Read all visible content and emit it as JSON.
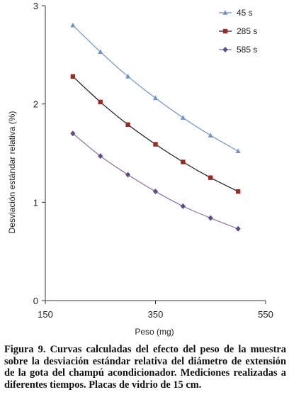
{
  "caption": "Figura 9. Curvas calculadas del efecto del peso de la muestra sobre la desviación estándar relativa del diámetro de extensión de la gota del champú acondicionador. Mediciones realizadas a diferentes tiempos. Placas de vidrio de 15 cm.",
  "chart_data": {
    "type": "line",
    "title": "",
    "xlabel": "Peso (mg)",
    "ylabel": "Desviación estándar relativa (%)",
    "xlim": [
      150,
      550
    ],
    "ylim": [
      0,
      3
    ],
    "xticks": [
      "150",
      "350",
      "550"
    ],
    "yticks": [
      "0",
      "1",
      "2",
      "3"
    ],
    "grid": false,
    "legend_position": "top-right",
    "x": [
      200,
      250,
      300,
      350,
      400,
      450,
      500
    ],
    "series": [
      {
        "name": "45 s",
        "color": "#6e93c8",
        "marker": "triangle",
        "values": [
          2.8,
          2.53,
          2.28,
          2.06,
          1.86,
          1.68,
          1.52
        ]
      },
      {
        "name": "285 s",
        "color": "#1a1a1a",
        "marker_color": "#9b2a23",
        "marker": "square",
        "values": [
          2.28,
          2.02,
          1.79,
          1.59,
          1.41,
          1.25,
          1.11
        ]
      },
      {
        "name": "585 s",
        "color": "#8a6fa8",
        "marker_color": "#5f4a86",
        "marker": "diamond",
        "values": [
          1.7,
          1.47,
          1.28,
          1.11,
          0.96,
          0.84,
          0.73
        ]
      }
    ]
  }
}
